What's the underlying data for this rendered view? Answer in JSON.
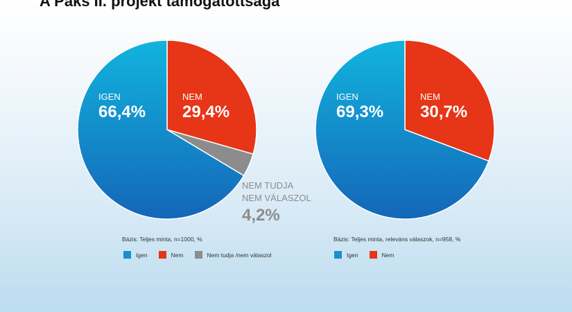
{
  "title": "A Paks II. projekt támogatottsága",
  "colors": {
    "igen": "#1a8fd0",
    "igen_top": "#12b4de",
    "igen_bottom": "#1466b8",
    "nem": "#e63517",
    "nem_tudja": "#8c8c8c"
  },
  "chart_data": [
    {
      "type": "pie",
      "slices": [
        {
          "label": "NEM",
          "value": 29.4,
          "text": "29,4%"
        },
        {
          "label": "NEM TUDJA NEM VÁLASZOL",
          "value": 4.2,
          "text": "4,2%"
        },
        {
          "label": "IGEN",
          "value": 66.4,
          "text": "66,4%"
        }
      ],
      "base": "Bázis: Teljes minta, n=1000, %",
      "legend": [
        "Igen",
        "Nem",
        "Nem tudja /nem válaszol"
      ],
      "outside_label_lines": [
        "NEM TUDJA",
        "NEM VÁLASZOL"
      ]
    },
    {
      "type": "pie",
      "slices": [
        {
          "label": "NEM",
          "value": 30.7,
          "text": "30,7%"
        },
        {
          "label": "IGEN",
          "value": 69.3,
          "text": "69,3%"
        }
      ],
      "base": "Bázis: Teljes minta, releváns válaszok, n=958, %",
      "legend": [
        "Igen",
        "Nem"
      ]
    }
  ]
}
